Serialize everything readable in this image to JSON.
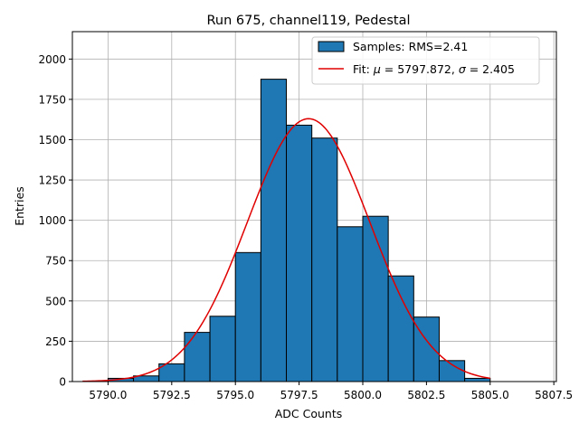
{
  "chart_data": {
    "type": "bar",
    "title": "Run 675, channel119, Pedestal",
    "xlabel": "ADC Counts",
    "ylabel": "Entries",
    "xlim": [
      5788.6,
      5807.6
    ],
    "ylim": [
      0,
      2170
    ],
    "x_ticks": [
      5790.0,
      5792.5,
      5795.0,
      5797.5,
      5800.0,
      5802.5,
      5805.0,
      5807.5
    ],
    "x_tick_labels": [
      "5790.0",
      "5792.5",
      "5795.0",
      "5797.5",
      "5800.0",
      "5802.5",
      "5805.0",
      "5807.5"
    ],
    "y_ticks": [
      0,
      250,
      500,
      750,
      1000,
      1250,
      1500,
      1750,
      2000
    ],
    "y_tick_labels": [
      "0",
      "250",
      "500",
      "750",
      "1000",
      "1250",
      "1500",
      "1750",
      "2000"
    ],
    "grid": true,
    "legend_position": "top-right",
    "histogram": {
      "name": "Samples: RMS=2.41",
      "bin_edges": [
        5790,
        5791,
        5792,
        5793,
        5794,
        5795,
        5796,
        5797,
        5798,
        5799,
        5800,
        5801,
        5802,
        5803,
        5804,
        5805
      ],
      "counts": [
        20,
        35,
        110,
        305,
        405,
        800,
        1875,
        1590,
        1510,
        960,
        1025,
        655,
        400,
        130,
        20
      ],
      "color": "#1f77b4",
      "edge_color": "#000000"
    },
    "fit": {
      "name_prefix": "Fit: ",
      "mu_label": "μ",
      "mu_value": " = 5797.872, ",
      "sigma_label": "σ",
      "sigma_value": " = 2.405",
      "mu": 5797.872,
      "sigma": 2.405,
      "amplitude": 1630,
      "x_range": [
        5789,
        5805
      ],
      "color": "#e00000"
    }
  }
}
